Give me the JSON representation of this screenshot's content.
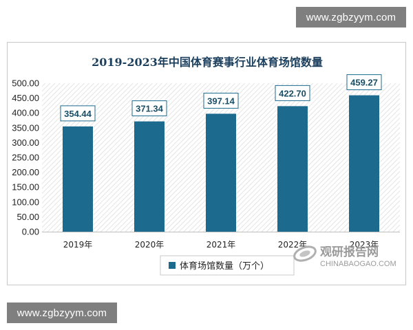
{
  "watermarks": {
    "top": "www.zgbzyym.com",
    "bottom": "www.zgbzyym.com"
  },
  "logo": {
    "cn": "观研报告网",
    "en": "CHINABAOGAO.COM"
  },
  "colors": {
    "bar": "#1c6a8e",
    "label_border": "#1c6a8e",
    "title": "#1b3f5c"
  },
  "chart_data": {
    "type": "bar",
    "title": "2019-2023年中国体育赛事行业体育场馆数量",
    "categories": [
      "2019年",
      "2020年",
      "2021年",
      "2022年",
      "2023年"
    ],
    "series": [
      {
        "name": "体育场馆数量（万个）",
        "values": [
          354.44,
          371.34,
          397.14,
          422.7,
          459.27
        ]
      }
    ],
    "value_labels": [
      "354.44",
      "371.34",
      "397.14",
      "422.70",
      "459.27"
    ],
    "yticks": [
      "0.00",
      "50.00",
      "100.00",
      "150.00",
      "200.00",
      "250.00",
      "300.00",
      "350.00",
      "400.00",
      "450.00",
      "500.00"
    ],
    "ylim": [
      0,
      500
    ],
    "grid": false,
    "legend_position": "bottom"
  }
}
